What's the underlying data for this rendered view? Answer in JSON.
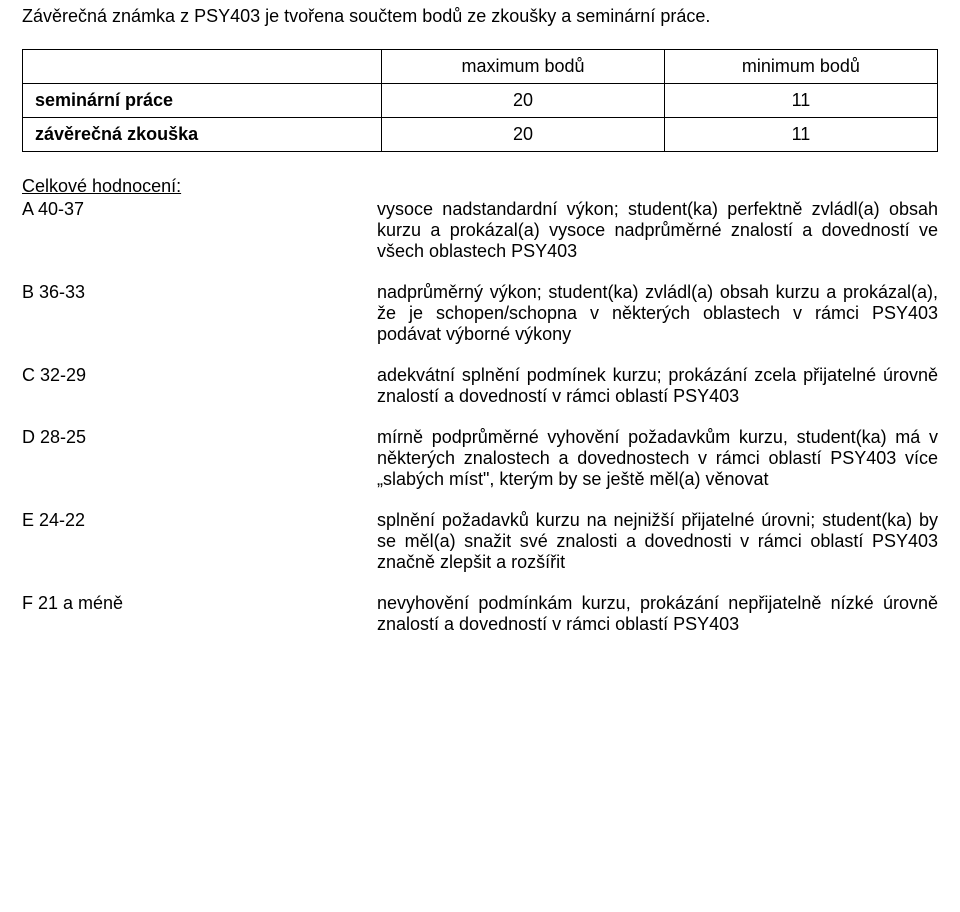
{
  "intro": "Závěrečná známka z PSY403 je tvořena součtem bodů ze zkoušky a seminární práce.",
  "table": {
    "header_max": "maximum bodů",
    "header_min": "minimum bodů",
    "rows": [
      {
        "label": "seminární práce",
        "max": "20",
        "min": "11"
      },
      {
        "label": "závěrečná zkouška",
        "max": "20",
        "min": "11"
      }
    ]
  },
  "grading": {
    "heading": "Celkové hodnocení:",
    "rows": [
      {
        "label": "A 40-37",
        "desc": "vysoce nadstandardní výkon; student(ka) perfektně zvládl(a) obsah kurzu a prokázal(a) vysoce nadprůměrné znalostí a dovedností ve všech oblastech PSY403"
      },
      {
        "label": "B 36-33",
        "desc": "nadprůměrný výkon; student(ka) zvládl(a) obsah kurzu a prokázal(a), že je schopen/schopna v některých oblastech v rámci PSY403 podávat výborné výkony"
      },
      {
        "label": "C  32-29",
        "desc": "adekvátní splnění podmínek kurzu; prokázání zcela přijatelné úrovně znalostí a dovedností v rámci oblastí PSY403"
      },
      {
        "label": "D  28-25",
        "desc": "mírně podprůměrné vyhovění požadavkům kurzu, student(ka) má v některých znalostech a dovednostech v rámci oblastí PSY403 více „slabých míst\", kterým by se ještě měl(a) věnovat"
      },
      {
        "label": "E  24-22",
        "desc": "splnění požadavků kurzu na nejnižší přijatelné úrovni; student(ka) by se měl(a) snažit své znalosti a dovednosti v rámci oblastí PSY403 značně zlepšit a rozšířit"
      },
      {
        "label": "F 21 a méně",
        "desc": "nevyhovění podmínkám kurzu, prokázání nepřijatelně nízké úrovně znalostí a dovedností v rámci oblastí PSY403"
      }
    ]
  }
}
